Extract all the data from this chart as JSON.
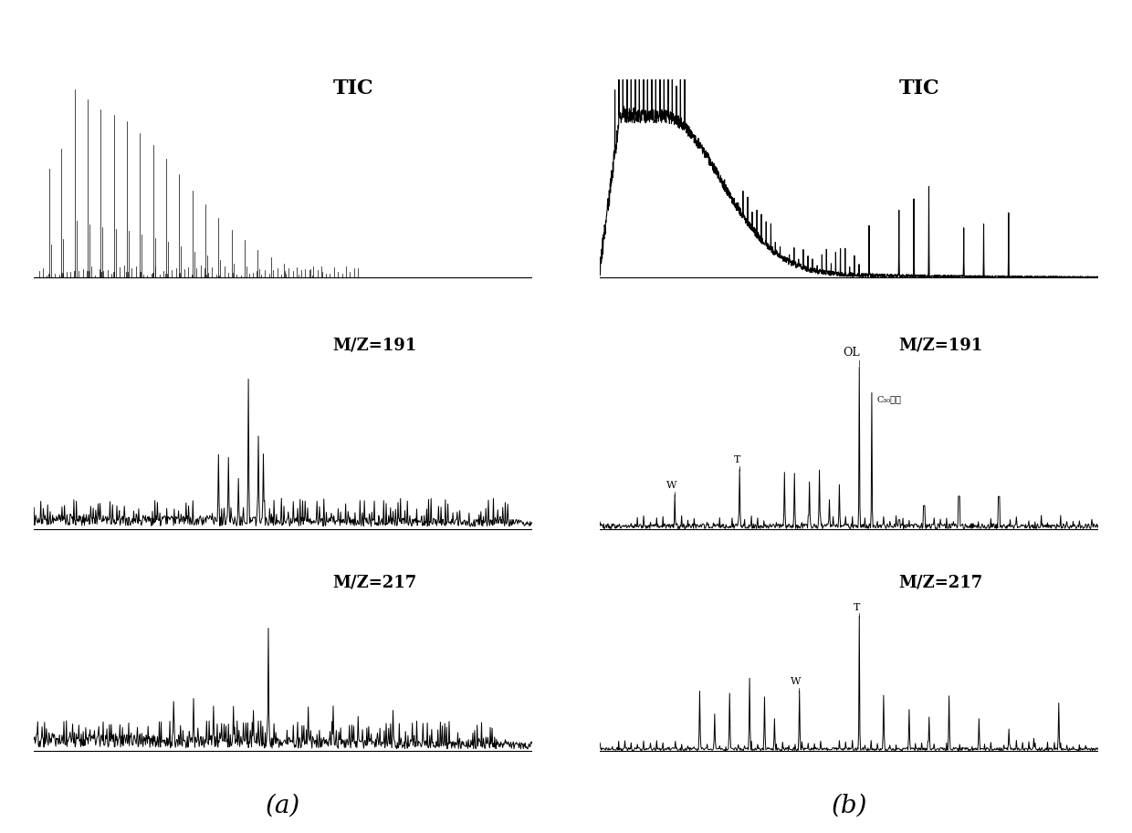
{
  "background_color": "#ffffff",
  "text_color": "#000000",
  "label_a": "(a)",
  "label_b": "(b)",
  "labels": {
    "a_tic": "TIC",
    "a_191": "M/Z=191",
    "a_217": "M/Z=217",
    "b_tic": "TIC",
    "b_191": "M/Z=191",
    "b_217": "M/Z=217"
  }
}
